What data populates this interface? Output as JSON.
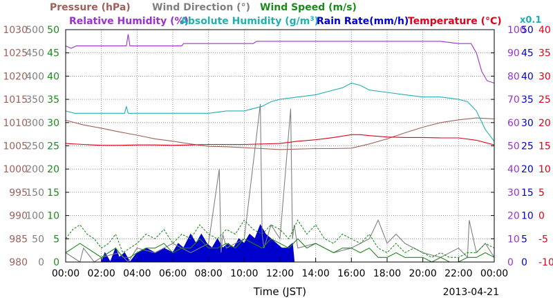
{
  "chart_data": {
    "type": "line",
    "date_label": "2013-04-21",
    "xlabel": "Time (JST)",
    "x_range": [
      0,
      24
    ],
    "x_ticks": [
      "00:00",
      "02:00",
      "04:00",
      "06:00",
      "08:00",
      "10:00",
      "12:00",
      "14:00",
      "16:00",
      "18:00",
      "20:00",
      "22:00",
      "00:00"
    ],
    "legend": [
      {
        "text": "Pressure (hPa)",
        "color": "#a0605a"
      },
      {
        "text": "Wind Direction (°)",
        "color": "#808080"
      },
      {
        "text": "Wind Speed (m/s)",
        "color": "#1a8a1a"
      },
      {
        "text": "Relative Humidity (%)",
        "color": "#9b30d0"
      },
      {
        "text": "Absolute Humidity (g/m",
        "sup": "3",
        "tail": ")",
        "color": "#20b0b0"
      },
      {
        "text": "Rain Rate(mm/h)",
        "color": "#0000cc"
      },
      {
        "text": "Temperature (°C)",
        "color": "#e0001a"
      }
    ],
    "ah_scale_note": "x0.1",
    "axes": [
      {
        "name": "pressure",
        "color": "#a0605a",
        "range": [
          980,
          1030
        ],
        "ticks": [
          "980",
          "985",
          "990",
          "995",
          "1000",
          "1005",
          "1010",
          "1015",
          "1020",
          "1025",
          "1030"
        ]
      },
      {
        "name": "wind-direction",
        "color": "#808080",
        "range": [
          0,
          500
        ],
        "ticks": [
          "0",
          "50",
          "100",
          "150",
          "200",
          "250",
          "300",
          "350",
          "400",
          "450",
          "500"
        ]
      },
      {
        "name": "wind-speed",
        "color": "#1a8a1a",
        "range": [
          0,
          50
        ],
        "ticks": [
          "0",
          "5",
          "10",
          "15",
          "20",
          "25",
          "30",
          "35",
          "40",
          "45",
          "50"
        ]
      },
      {
        "name": "relative-humidity",
        "color": "#9b30d0",
        "range": [
          0,
          100
        ],
        "ticks": [
          "0",
          "10",
          "20",
          "30",
          "40",
          "50",
          "60",
          "70",
          "80",
          "90",
          "100"
        ]
      },
      {
        "name": "rain-rate",
        "color": "#0000cc",
        "range": [
          0,
          50
        ],
        "ticks": [
          "0",
          "5",
          "10",
          "15",
          "20",
          "25",
          "30",
          "35",
          "40",
          "45",
          "50"
        ]
      },
      {
        "name": "temperature",
        "color": "#e0001a",
        "range": [
          -10,
          40
        ],
        "ticks": [
          "-10",
          "-5",
          "0",
          "5",
          "10",
          "15",
          "20",
          "25",
          "30",
          "35",
          "40"
        ]
      }
    ],
    "series": [
      {
        "name": "Relative Humidity",
        "axis": "relative-humidity",
        "color": "#9b30d0",
        "x": [
          0,
          0.3,
          0.6,
          3.4,
          3.5,
          3.6,
          3.7,
          6.5,
          6.6,
          10.5,
          10.7,
          11.5,
          12.5,
          16.8,
          17,
          21,
          22,
          22.7,
          23,
          23.3,
          23.6,
          24
        ],
        "y": [
          93,
          92,
          93,
          93,
          98,
          93,
          93,
          93,
          94,
          94,
          95,
          95,
          95,
          95,
          95,
          95,
          94,
          94,
          90,
          82,
          78,
          77
        ]
      },
      {
        "name": "Absolute Humidity",
        "axis": "relative-humidity",
        "color": "#20b0b0",
        "x": [
          0,
          0.5,
          1,
          2,
          3.3,
          3.4,
          3.5,
          4,
          5,
          6,
          7,
          8,
          9,
          10,
          11,
          11.5,
          12,
          13,
          14,
          15,
          15.5,
          16,
          16.5,
          17,
          18,
          19,
          20,
          21,
          22,
          22.5,
          23,
          23.5,
          24
        ],
        "y": [
          65,
          64,
          64,
          64,
          64,
          67,
          64,
          64,
          64,
          64,
          64,
          64,
          65,
          65,
          67,
          69,
          70,
          71,
          72,
          74,
          75,
          77,
          76,
          74,
          73,
          72,
          71,
          71,
          70,
          69,
          65,
          57,
          52
        ]
      },
      {
        "name": "Pressure",
        "axis": "pressure",
        "color": "#a0605a",
        "x": [
          0,
          1,
          2,
          3,
          4,
          5,
          6,
          7,
          8,
          9,
          10,
          11,
          12,
          13,
          14,
          15,
          16,
          17,
          18,
          19,
          20,
          21,
          22,
          23,
          24
        ],
        "y": [
          1010.5,
          1009.5,
          1008.8,
          1008,
          1007.3,
          1006.5,
          1006,
          1005.4,
          1004.9,
          1004.8,
          1004.6,
          1004.4,
          1004.2,
          1004.3,
          1004.4,
          1004.4,
          1004.5,
          1005.4,
          1006.5,
          1007.8,
          1009,
          1010,
          1010.6,
          1011,
          1010.8
        ]
      },
      {
        "name": "Temperature",
        "axis": "temperature",
        "color": "#e0001a",
        "x": [
          0,
          1,
          2,
          3,
          4,
          5,
          6,
          7,
          8,
          9,
          10,
          11,
          12,
          13,
          14,
          15,
          16,
          16.5,
          17,
          18,
          19,
          20,
          21,
          22,
          23,
          24
        ],
        "y": [
          15.5,
          15.3,
          15.1,
          15.1,
          15.2,
          15.2,
          15.1,
          15.2,
          15.3,
          15.3,
          15.3,
          15.4,
          15.5,
          16,
          16.3,
          16.8,
          17.4,
          17.4,
          17.2,
          16.9,
          16.8,
          16.8,
          16.7,
          16.7,
          16.2,
          15.2
        ]
      },
      {
        "name": "Rain Rate",
        "axis": "rain-rate",
        "color": "#0000cc",
        "style": "area",
        "x": [
          0,
          1.5,
          2,
          2.2,
          2.5,
          2.8,
          3.0,
          3.3,
          3.6,
          4.0,
          4.5,
          5.0,
          5.5,
          6.0,
          6.3,
          6.6,
          7.0,
          7.3,
          7.6,
          7.9,
          8.2,
          8.5,
          8.8,
          9.1,
          9.4,
          9.7,
          10.0,
          10.3,
          10.6,
          10.9,
          11.2,
          11.5,
          11.8,
          12.1,
          12.4,
          12.7,
          12.8,
          13.0,
          24
        ],
        "y": [
          0,
          0,
          0,
          2,
          0,
          3,
          1,
          2,
          0,
          2,
          3,
          2,
          3,
          2,
          4,
          3,
          6,
          4,
          6,
          4,
          3,
          5,
          3,
          4,
          3,
          5,
          4,
          6,
          5,
          8,
          6,
          5,
          4,
          3,
          3,
          4,
          0,
          0,
          0
        ]
      },
      {
        "name": "Wind Speed Gust",
        "axis": "wind-speed",
        "color": "#1a8a1a",
        "style": "dashed",
        "x": [
          0,
          0.4,
          0.8,
          1.2,
          1.6,
          2,
          2.4,
          2.8,
          3.2,
          3.6,
          4,
          4.5,
          5,
          5.5,
          6,
          6.5,
          7,
          7.5,
          8,
          8.5,
          9,
          9.5,
          10,
          10.5,
          11,
          11.5,
          12,
          12.5,
          13,
          13.5,
          14,
          14.5,
          15,
          15.5,
          16,
          16.5,
          17,
          17.5,
          18,
          18.5,
          19,
          19.5,
          20,
          20.5,
          21,
          21.5,
          22,
          22.5,
          23,
          23.5,
          24
        ],
        "y": [
          5,
          7,
          8,
          6,
          5,
          3,
          4,
          6,
          2,
          3,
          4,
          6,
          5,
          7,
          4,
          6,
          5,
          8,
          6,
          5,
          7,
          6,
          9,
          7,
          6,
          8,
          7,
          5,
          9,
          6,
          8,
          5,
          4,
          6,
          5,
          4,
          6,
          3,
          2,
          4,
          2,
          3,
          2,
          1,
          2,
          1,
          1,
          2,
          2,
          4,
          3
        ]
      },
      {
        "name": "Wind Speed",
        "axis": "wind-speed",
        "color": "#1a8a1a",
        "x": [
          0,
          0.4,
          0.8,
          1.2,
          1.6,
          2,
          2.4,
          2.8,
          3.2,
          3.6,
          4,
          4.5,
          5,
          5.5,
          6,
          6.5,
          7,
          7.5,
          8,
          8.5,
          9,
          9.5,
          10,
          10.5,
          11,
          11.5,
          12,
          12.5,
          13,
          13.5,
          14,
          14.5,
          15,
          15.5,
          16,
          16.5,
          17,
          17.5,
          18,
          18.5,
          19,
          19.5,
          20,
          20.5,
          21,
          21.5,
          22,
          22.5,
          23,
          23.5,
          24
        ],
        "y": [
          2,
          3,
          4,
          3,
          2,
          1,
          2,
          3,
          1,
          1,
          2,
          3,
          3,
          4,
          2,
          3,
          3,
          5,
          3,
          3,
          4,
          3,
          5,
          4,
          3,
          5,
          4,
          3,
          5,
          3,
          4,
          3,
          2,
          3,
          3,
          2,
          3,
          1,
          1,
          2,
          1,
          1,
          1,
          0,
          1,
          0,
          0,
          1,
          1,
          2,
          1
        ]
      },
      {
        "name": "Wind Direction",
        "axis": "wind-direction",
        "color": "#808080",
        "x": [
          0,
          0.8,
          1,
          1.6,
          2,
          3,
          3.5,
          4,
          5,
          6,
          7,
          8,
          8.6,
          8.7,
          8.8,
          9,
          10,
          10.9,
          11.0,
          11.1,
          11.5,
          12,
          12.6,
          12.7,
          12.8,
          13,
          14,
          15,
          16,
          17,
          17.5,
          18,
          18.5,
          19,
          20,
          21,
          22,
          22.5,
          22.6,
          23,
          23.5,
          24
        ],
        "y": [
          20,
          0,
          30,
          0,
          10,
          20,
          0,
          30,
          20,
          40,
          20,
          40,
          200,
          20,
          60,
          30,
          50,
          340,
          60,
          30,
          80,
          50,
          330,
          50,
          80,
          30,
          40,
          20,
          30,
          50,
          90,
          40,
          60,
          40,
          20,
          10,
          30,
          10,
          90,
          20,
          40,
          10
        ]
      }
    ]
  }
}
